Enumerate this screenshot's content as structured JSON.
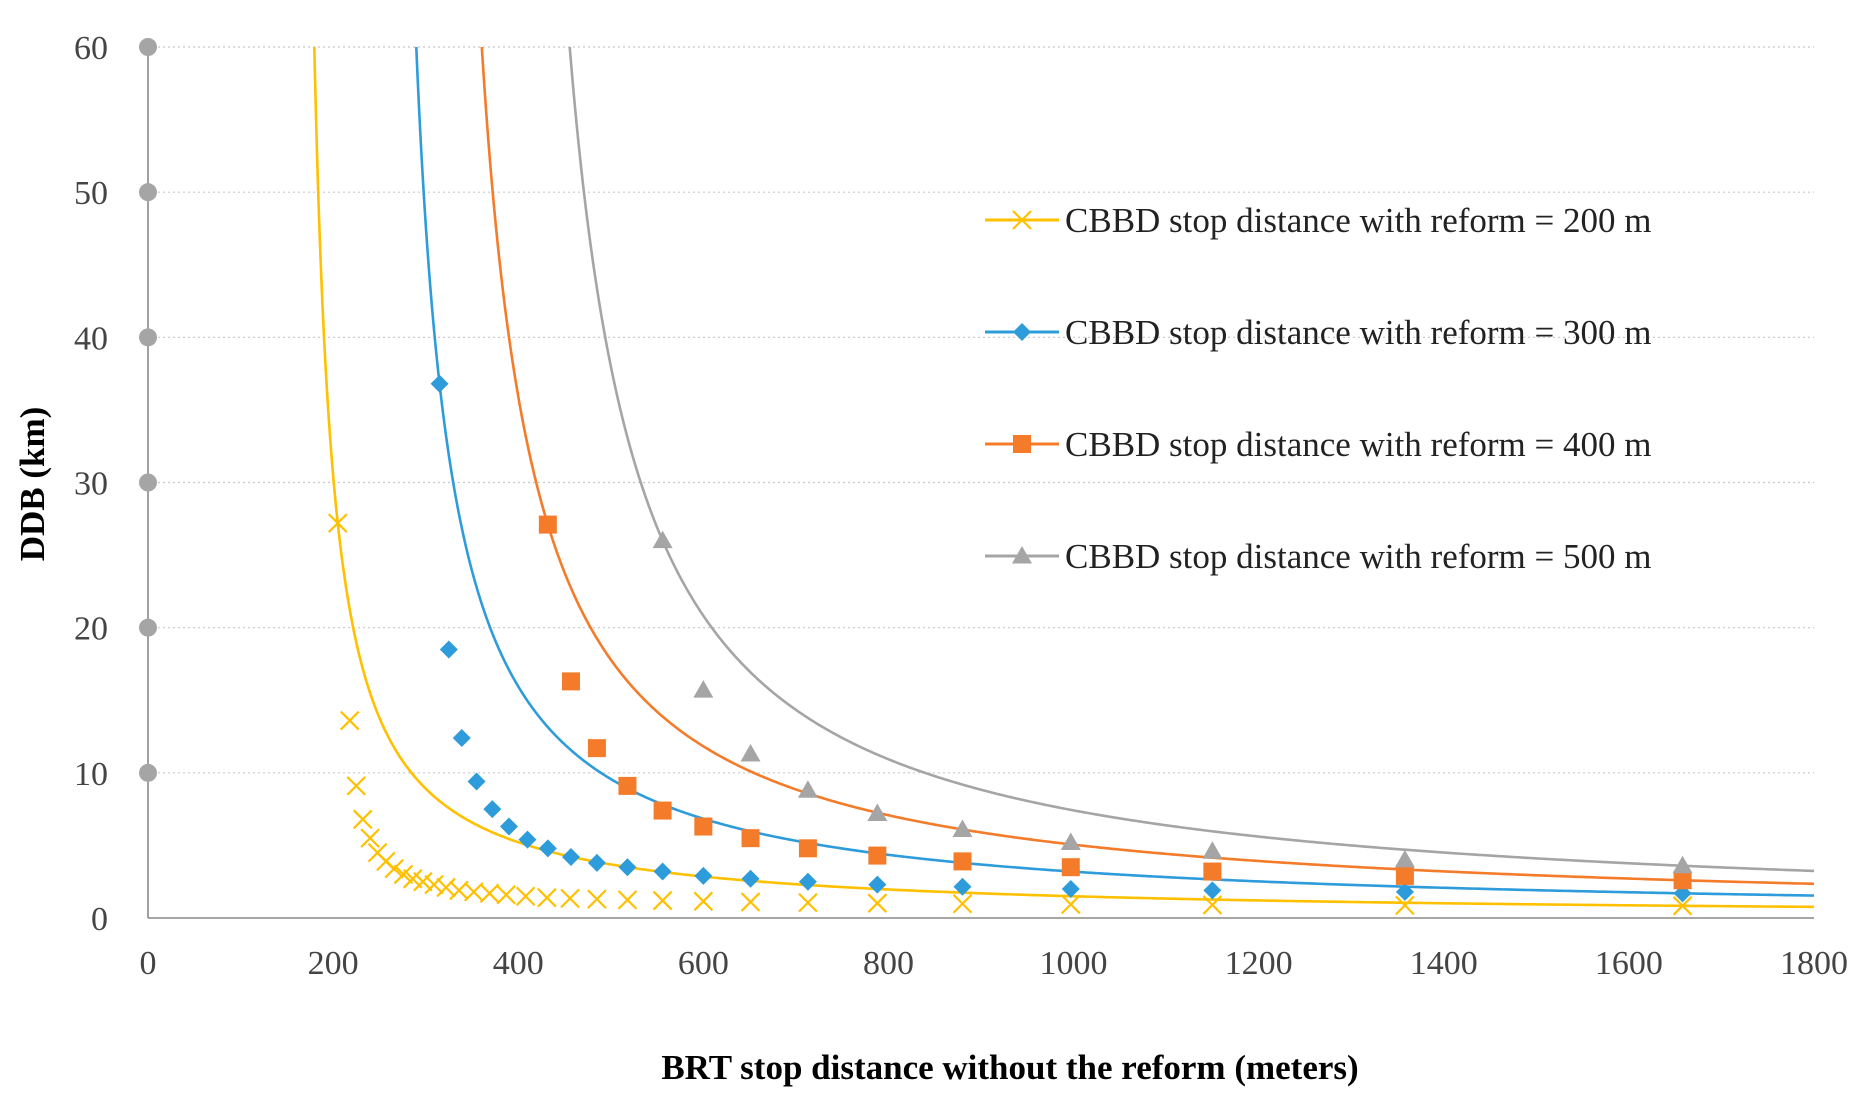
{
  "chart_data": {
    "type": "line",
    "title": "",
    "xlabel": "BRT stop distance without the reform (meters)",
    "ylabel": "DDB (km)",
    "xlim": [
      0,
      1800
    ],
    "ylim": [
      0,
      60
    ],
    "x_ticks": [
      0,
      200,
      400,
      600,
      800,
      1000,
      1200,
      1400,
      1600,
      1800
    ],
    "y_ticks": [
      0,
      10,
      20,
      30,
      40,
      50,
      60
    ],
    "grid": true,
    "legend_position": "right",
    "y_axis_markers": [
      10,
      20,
      30,
      40,
      50,
      60
    ],
    "series": [
      {
        "name": "CBBD stop distance with reform = 200 m",
        "color": "#FFC000",
        "marker": "x",
        "x": [
          205,
          218,
          225,
          232,
          240,
          248,
          257,
          266,
          276,
          286,
          297,
          309,
          322,
          336,
          352,
          369,
          387,
          408,
          431,
          456,
          485,
          518,
          556,
          600,
          651,
          713,
          788,
          880,
          997,
          1150,
          1358,
          1658
        ],
        "y": [
          27.2,
          13.6,
          9.1,
          6.8,
          5.5,
          4.5,
          3.9,
          3.4,
          3.0,
          2.7,
          2.5,
          2.3,
          2.1,
          1.9,
          1.8,
          1.7,
          1.6,
          1.5,
          1.4,
          1.35,
          1.3,
          1.25,
          1.2,
          1.15,
          1.1,
          1.06,
          1.02,
          0.98,
          0.94,
          0.9,
          0.87,
          0.84
        ]
      },
      {
        "name": "CBBD stop distance with reform = 300 m",
        "color": "#2E9CDB",
        "marker": "diamond",
        "x": [
          315,
          325,
          339,
          355,
          372,
          390,
          410,
          432,
          457,
          485,
          518,
          556,
          600,
          651,
          713,
          788,
          880,
          997,
          1150,
          1358,
          1658
        ],
        "y": [
          36.8,
          18.5,
          12.4,
          9.4,
          7.5,
          6.3,
          5.4,
          4.8,
          4.2,
          3.8,
          3.5,
          3.2,
          2.9,
          2.7,
          2.5,
          2.3,
          2.15,
          2.0,
          1.9,
          1.8,
          1.7
        ]
      },
      {
        "name": "CBBD stop distance with reform = 400 m",
        "color": "#F47B2A",
        "marker": "square",
        "x": [
          432,
          457,
          485,
          518,
          556,
          600,
          651,
          713,
          788,
          880,
          997,
          1150,
          1358,
          1658
        ],
        "y": [
          27.1,
          16.3,
          11.7,
          9.1,
          7.4,
          6.3,
          5.5,
          4.8,
          4.3,
          3.9,
          3.5,
          3.2,
          2.9,
          2.6
        ]
      },
      {
        "name": "CBBD stop distance with reform = 500 m",
        "color": "#A5A5A5",
        "marker": "triangle",
        "x": [
          556,
          600,
          651,
          713,
          788,
          880,
          997,
          1150,
          1358,
          1658
        ],
        "y": [
          26.0,
          15.7,
          11.3,
          8.8,
          7.2,
          6.1,
          5.2,
          4.6,
          4.0,
          3.6
        ]
      }
    ]
  }
}
